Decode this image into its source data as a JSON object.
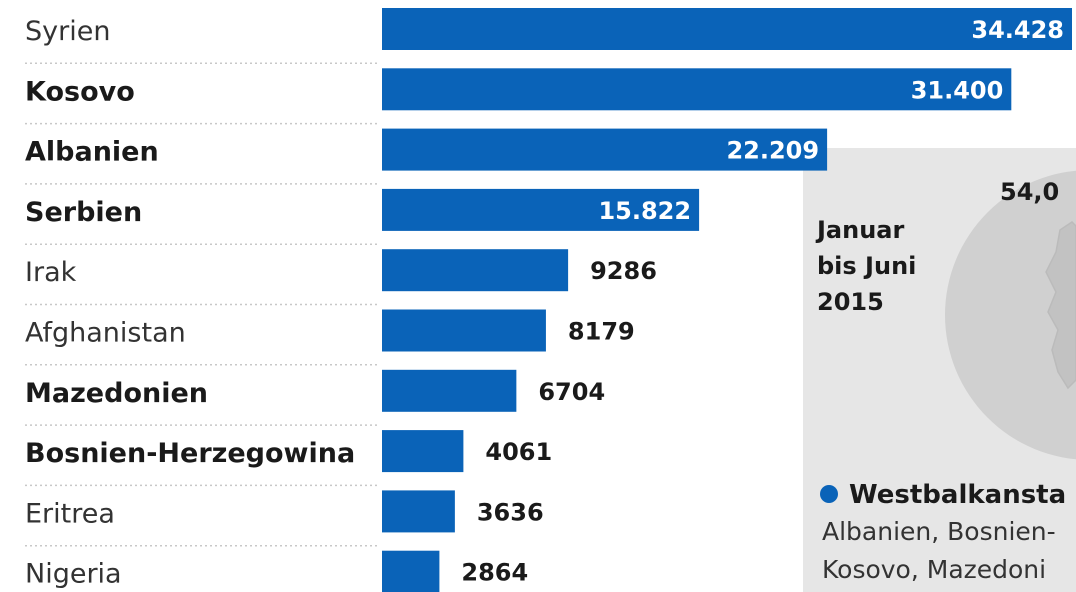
{
  "chart_data": {
    "type": "bar",
    "orientation": "horizontal",
    "categories": [
      "Syrien",
      "Kosovo",
      "Albanien",
      "Serbien",
      "Irak",
      "Afghanistan",
      "Mazedonien",
      "Bosnien-Herzegowina",
      "Eritrea",
      "Nigeria"
    ],
    "bold_categories": [
      "Kosovo",
      "Albanien",
      "Serbien",
      "Mazedonien",
      "Bosnien-Herzegowina"
    ],
    "values": [
      34428,
      31400,
      22209,
      15822,
      9286,
      8179,
      6704,
      4061,
      3636,
      2864
    ],
    "value_labels": [
      "34.428",
      "31.400",
      "22.209",
      "15.822",
      "9286",
      "8179",
      "6704",
      "4061",
      "3636",
      "2864"
    ],
    "bar_color": "#0a63b8",
    "label_inside_color": "#ffffff",
    "label_outside_color": "#1a1a1a"
  },
  "side_panel": {
    "period_lines": [
      "Januar",
      "bis Juni",
      "2015"
    ],
    "pie_value_partial": "54,0",
    "panel_color": "#e6e6e6",
    "pie_color": "#d0d0d0",
    "legend_bullet_color": "#0a63b8",
    "legend_title": "Westbalkansta",
    "legend_lines": [
      "Albanien, Bosnien-",
      "Kosovo, Mazedoni"
    ]
  }
}
